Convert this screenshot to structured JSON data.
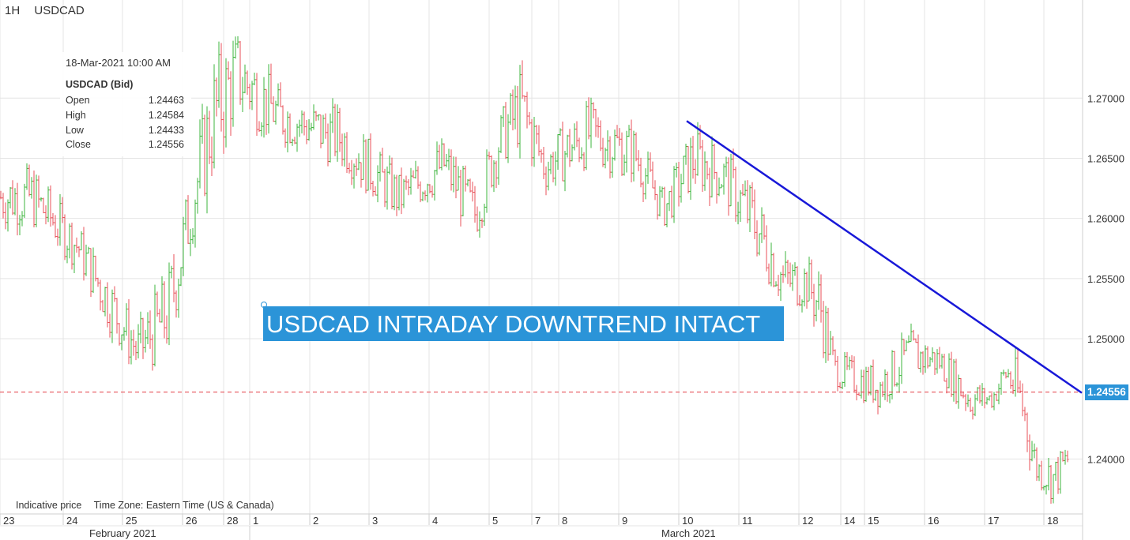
{
  "header": {
    "timeframe": "1H",
    "symbol": "USDCAD"
  },
  "tooltip": {
    "datetime": "18-Mar-2021 10:00 AM",
    "title": "USDCAD (Bid)",
    "rows": [
      {
        "label": "Open",
        "value": "1.24463"
      },
      {
        "label": "High",
        "value": "1.24584"
      },
      {
        "label": "Low",
        "value": "1.24433"
      },
      {
        "label": "Close",
        "value": "1.24556"
      }
    ]
  },
  "annotation": {
    "text": "USDCAD INTRADAY DOWNTREND INTACT",
    "color": "#2b94d8"
  },
  "footer": {
    "note": "Indicative price",
    "timezone": "Time Zone: Eastern Time (US & Canada)"
  },
  "last_price": {
    "value": "1.24556",
    "color": "#2b94d8"
  },
  "chart_data": {
    "type": "ohlc",
    "symbol": "USDCAD",
    "timeframe": "1H",
    "ylim": [
      1.2355,
      1.2775
    ],
    "y_ticks": [
      "1.27000",
      "1.26500",
      "1.26000",
      "1.25500",
      "1.25000",
      "1.24000"
    ],
    "x_ticks": [
      "23",
      "24",
      "25",
      "26",
      "28",
      "1",
      "2",
      "3",
      "4",
      "5",
      "7",
      "8",
      "9",
      "10",
      "11",
      "12",
      "14",
      "15",
      "16",
      "17",
      "18"
    ],
    "month_labels": [
      "February 2021",
      "March 2021"
    ],
    "grid": true,
    "up_color": "#3cb43c",
    "down_color": "#e8525a",
    "last_close": 1.24556,
    "trendline": {
      "color": "#1818d8",
      "from": {
        "date": "2021-03-10",
        "y": 1.2681
      },
      "to": {
        "date": "2021-03-18",
        "y": 1.2455
      }
    },
    "price_path": [
      {
        "date": "2021-02-23",
        "high": 1.2645,
        "low": 1.259
      },
      {
        "date": "2021-02-24",
        "high": 1.2598,
        "low": 1.2555
      },
      {
        "date": "2021-02-24",
        "high": 1.256,
        "low": 1.2505
      },
      {
        "date": "2021-02-25",
        "high": 1.2515,
        "low": 1.2465
      },
      {
        "date": "2021-02-25",
        "high": 1.256,
        "low": 1.248
      },
      {
        "date": "2021-02-26",
        "high": 1.265,
        "low": 1.258
      },
      {
        "date": "2021-02-26",
        "high": 1.274,
        "low": 1.263
      },
      {
        "date": "2021-02-28",
        "high": 1.276,
        "low": 1.268
      },
      {
        "date": "2021-03-01",
        "high": 1.271,
        "low": 1.266
      },
      {
        "date": "2021-03-02",
        "high": 1.2695,
        "low": 1.264
      },
      {
        "date": "2021-03-03",
        "high": 1.264,
        "low": 1.2595
      },
      {
        "date": "2021-03-04",
        "high": 1.267,
        "low": 1.262
      },
      {
        "date": "2021-03-04",
        "high": 1.263,
        "low": 1.2575
      },
      {
        "date": "2021-03-05",
        "high": 1.269,
        "low": 1.264
      },
      {
        "date": "2021-03-05",
        "high": 1.273,
        "low": 1.2655
      },
      {
        "date": "2021-03-07",
        "high": 1.2665,
        "low": 1.262
      },
      {
        "date": "2021-03-08",
        "high": 1.27,
        "low": 1.264
      },
      {
        "date": "2021-03-09",
        "high": 1.268,
        "low": 1.263
      },
      {
        "date": "2021-03-09",
        "high": 1.2625,
        "low": 1.259
      },
      {
        "date": "2021-03-10",
        "high": 1.268,
        "low": 1.262
      },
      {
        "date": "2021-03-10",
        "high": 1.266,
        "low": 1.261
      },
      {
        "date": "2021-03-11",
        "high": 1.263,
        "low": 1.2565
      },
      {
        "date": "2021-03-11",
        "high": 1.2575,
        "low": 1.252
      },
      {
        "date": "2021-03-12",
        "high": 1.257,
        "low": 1.2525
      },
      {
        "date": "2021-03-12",
        "high": 1.256,
        "low": 1.249
      },
      {
        "date": "2021-03-13",
        "high": 1.249,
        "low": 1.246
      },
      {
        "date": "2021-03-14",
        "high": 1.2485,
        "low": 1.245
      },
      {
        "date": "2021-03-15",
        "high": 1.248,
        "low": 1.244
      },
      {
        "date": "2021-03-15",
        "high": 1.251,
        "low": 1.2465
      },
      {
        "date": "2021-03-16",
        "high": 1.2498,
        "low": 1.2465
      },
      {
        "date": "2021-03-16",
        "high": 1.247,
        "low": 1.243
      },
      {
        "date": "2021-03-17",
        "high": 1.246,
        "low": 1.244
      },
      {
        "date": "2021-03-17",
        "high": 1.249,
        "low": 1.2455
      },
      {
        "date": "2021-03-17",
        "high": 1.2485,
        "low": 1.241
      },
      {
        "date": "2021-03-17",
        "high": 1.241,
        "low": 1.2375
      },
      {
        "date": "2021-03-18",
        "high": 1.2405,
        "low": 1.2362
      },
      {
        "date": "2021-03-18",
        "high": 1.242,
        "low": 1.2395
      },
      {
        "date": "2021-03-18",
        "high": 1.24584,
        "low": 1.244
      }
    ]
  }
}
